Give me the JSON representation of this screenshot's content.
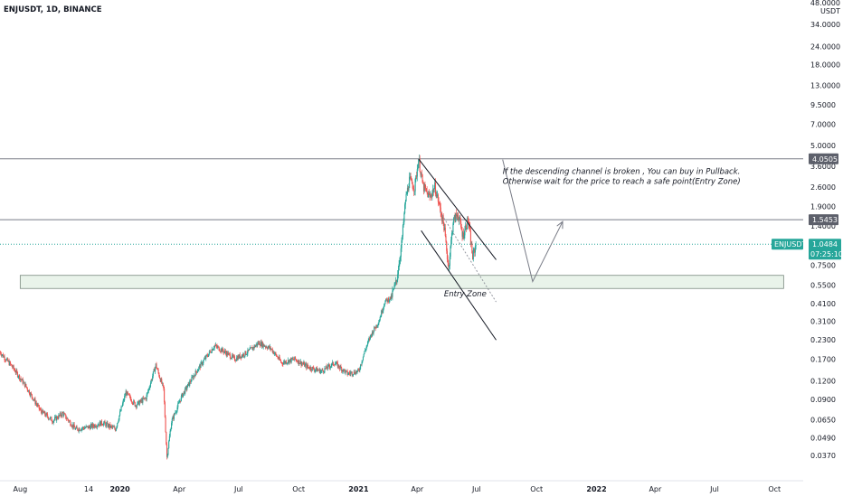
{
  "chart_data": {
    "type": "candlestick",
    "title": "ENJUSDT, 1D, BINANCE",
    "y_unit": "USDT",
    "y_scale": "log",
    "ylim": [
      0.0325,
      48.0
    ],
    "y_ticks": [
      "48.0000",
      "34.0000",
      "24.0000",
      "18.0000",
      "13.0000",
      "9.5000",
      "7.0000",
      "5.0000",
      "3.6000",
      "2.6000",
      "1.9000",
      "1.4000",
      "1.0000",
      "0.7500",
      "0.5500",
      "0.4100",
      "0.3100",
      "0.2300",
      "0.1700",
      "0.1200",
      "0.0900",
      "0.0650",
      "0.0490",
      "0.0370"
    ],
    "x_ticks": [
      "Aug",
      "14",
      "2020",
      "Apr",
      "Jul",
      "Oct",
      "2021",
      "Apr",
      "Jul",
      "Oct",
      "2022",
      "Apr",
      "Jul",
      "Oct"
    ],
    "xlim": [
      "2019-07-01",
      "2022-11-14"
    ],
    "price_path": [
      [
        "2019-07-01",
        0.19
      ],
      [
        "2019-07-20",
        0.15
      ],
      [
        "2019-08-10",
        0.11
      ],
      [
        "2019-09-01",
        0.075
      ],
      [
        "2019-09-20",
        0.064
      ],
      [
        "2019-10-05",
        0.072
      ],
      [
        "2019-10-25",
        0.056
      ],
      [
        "2019-11-15",
        0.058
      ],
      [
        "2019-12-05",
        0.062
      ],
      [
        "2019-12-25",
        0.056
      ],
      [
        "2020-01-10",
        0.1
      ],
      [
        "2020-01-25",
        0.082
      ],
      [
        "2020-02-10",
        0.092
      ],
      [
        "2020-02-25",
        0.155
      ],
      [
        "2020-03-08",
        0.105
      ],
      [
        "2020-03-13",
        0.036
      ],
      [
        "2020-03-20",
        0.063
      ],
      [
        "2020-04-05",
        0.095
      ],
      [
        "2020-04-25",
        0.135
      ],
      [
        "2020-05-10",
        0.17
      ],
      [
        "2020-05-25",
        0.21
      ],
      [
        "2020-06-10",
        0.19
      ],
      [
        "2020-06-25",
        0.17
      ],
      [
        "2020-07-15",
        0.19
      ],
      [
        "2020-08-01",
        0.22
      ],
      [
        "2020-08-20",
        0.2
      ],
      [
        "2020-09-05",
        0.16
      ],
      [
        "2020-09-25",
        0.17
      ],
      [
        "2020-10-15",
        0.15
      ],
      [
        "2020-11-05",
        0.14
      ],
      [
        "2020-11-25",
        0.16
      ],
      [
        "2020-12-15",
        0.135
      ],
      [
        "2021-01-01",
        0.14
      ],
      [
        "2021-01-10",
        0.19
      ],
      [
        "2021-01-20",
        0.25
      ],
      [
        "2021-02-01",
        0.31
      ],
      [
        "2021-02-10",
        0.42
      ],
      [
        "2021-02-20",
        0.45
      ],
      [
        "2021-02-28",
        0.58
      ],
      [
        "2021-03-08",
        1.05
      ],
      [
        "2021-03-14",
        2.1
      ],
      [
        "2021-03-20",
        2.9
      ],
      [
        "2021-03-28",
        2.55
      ],
      [
        "2021-04-03",
        4.05
      ],
      [
        "2021-04-10",
        2.6
      ],
      [
        "2021-04-20",
        2.2
      ],
      [
        "2021-04-28",
        2.6
      ],
      [
        "2021-05-06",
        1.85
      ],
      [
        "2021-05-12",
        1.4
      ],
      [
        "2021-05-19",
        0.72
      ],
      [
        "2021-05-26",
        1.5
      ],
      [
        "2021-06-02",
        1.7
      ],
      [
        "2021-06-10",
        1.2
      ],
      [
        "2021-06-18",
        1.55
      ],
      [
        "2021-06-25",
        0.85
      ],
      [
        "2021-06-30",
        1.0484
      ]
    ],
    "horizontal_levels": [
      {
        "label": "4.0505",
        "value": 4.0505,
        "color": "#787b86"
      },
      {
        "label": "1.5453",
        "value": 1.5453,
        "color": "#787b86"
      }
    ],
    "current_price": {
      "symbol": "ENJUSDT",
      "value": "1.0484",
      "countdown": "07:25:10",
      "color": "#26a69a"
    },
    "entry_zone": {
      "label": "Entry Zone",
      "from": "2019-08-01",
      "to": "2022-10-15",
      "low": 0.52,
      "high": 0.64
    },
    "channel_lines": [
      {
        "from": [
          "2021-04-03",
          4.05
        ],
        "to": [
          "2021-07-31",
          0.82
        ]
      },
      {
        "from": [
          "2021-04-07",
          1.3
        ],
        "to": [
          "2021-07-31",
          0.23
        ]
      },
      {
        "from": [
          "2021-05-06",
          1.75
        ],
        "to": [
          "2021-07-31",
          0.42
        ],
        "style": "dotted"
      }
    ],
    "projection_path": [
      [
        "2021-08-10",
        4.0
      ],
      [
        "2021-09-25",
        0.58
      ],
      [
        "2021-11-10",
        1.5
      ]
    ],
    "annotation": "If the descending channel is broken , You can buy in Pullback.\nOtherwise wait for the price to reach a safe point(Entry Zone)",
    "colors": {
      "up": "#26a69a",
      "down": "#ef5350",
      "line": "#131722",
      "zone_fill": "#e9f3ea",
      "zone_border": "#7a8a7f",
      "axis_bg": "#ffffff"
    }
  }
}
